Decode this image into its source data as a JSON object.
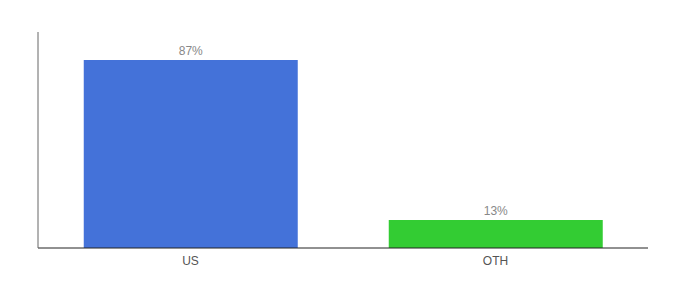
{
  "chart_data": {
    "type": "bar",
    "categories": [
      "US",
      "OTH"
    ],
    "values": [
      87,
      13
    ],
    "value_labels": [
      "87%",
      "13%"
    ],
    "colors": [
      "#4472D9",
      "#33CC33"
    ],
    "ylim": [
      0,
      100
    ],
    "data_labels": true,
    "tick_labels": "x",
    "grid": false
  }
}
